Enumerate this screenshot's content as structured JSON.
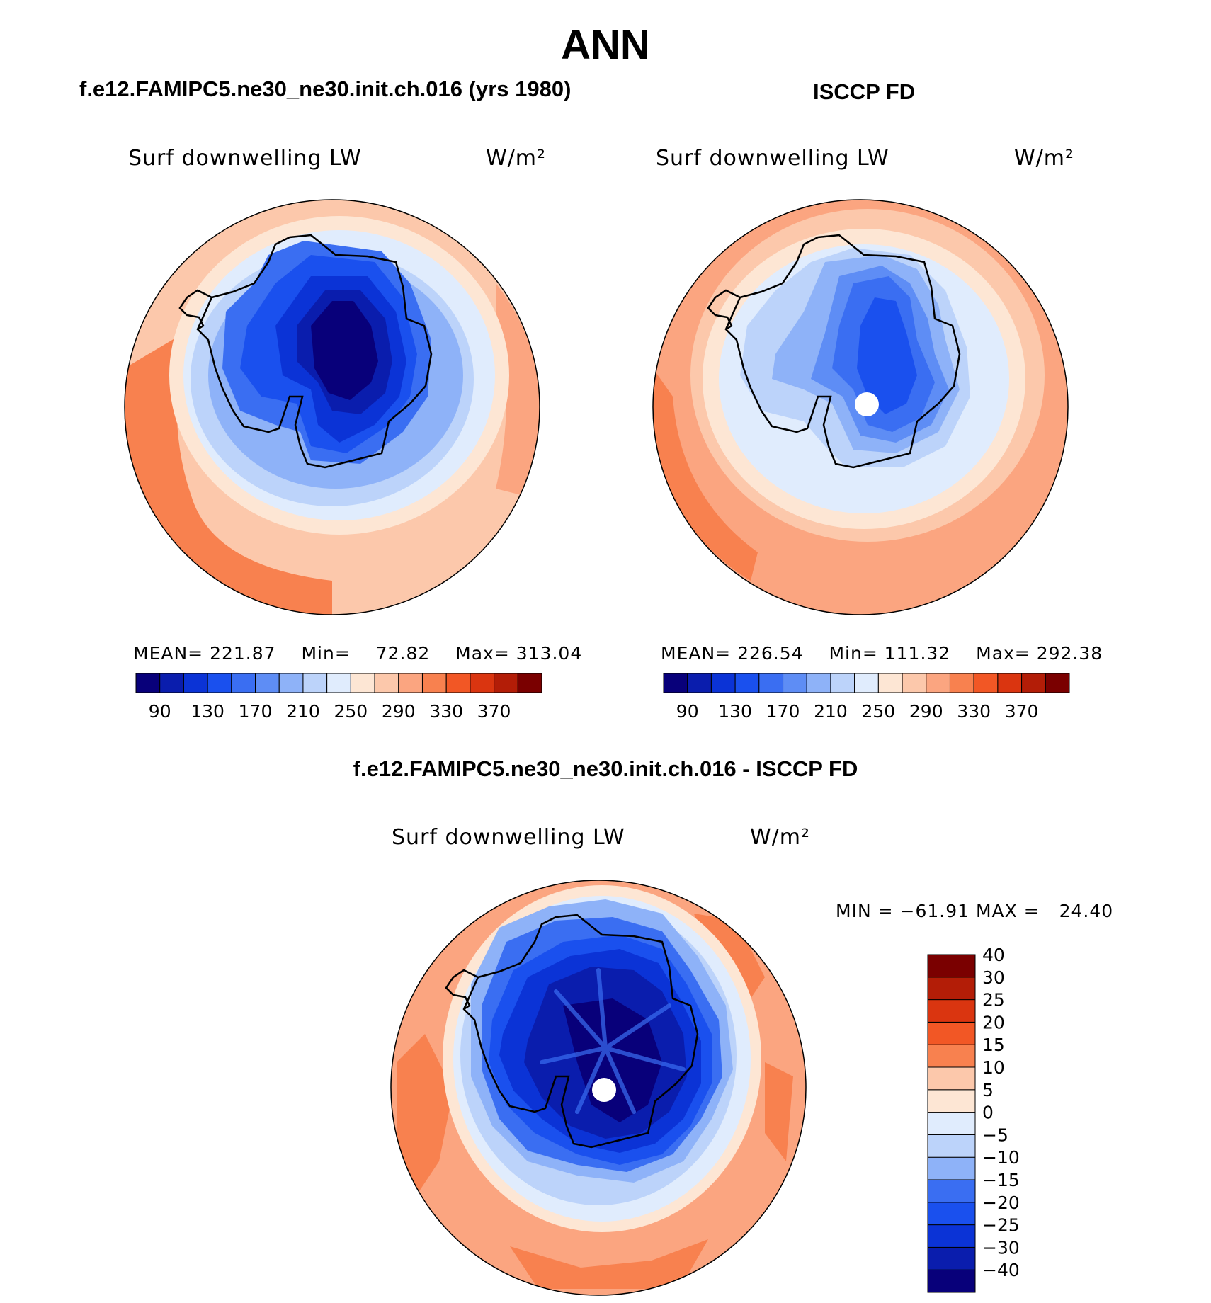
{
  "title": "ANN",
  "panels": [
    {
      "subtitle": "f.e12.FAMIPC5.ne30_ne30.init.ch.016 (yrs 1980)",
      "variable_label": "Surf downwelling LW",
      "units_label": "W/m²",
      "stats": {
        "mean_label": "MEAN=",
        "mean": "221.87",
        "min_label": "Min=",
        "min": "72.82",
        "max_label": "Max=",
        "max": "313.04"
      },
      "missing_pole": false
    },
    {
      "subtitle": "ISCCP FD",
      "variable_label": "Surf downwelling LW",
      "units_label": "W/m²",
      "stats": {
        "mean_label": "MEAN=",
        "mean": "226.54",
        "min_label": "Min=",
        "min": "111.32",
        "max_label": "Max=",
        "max": "292.38"
      },
      "missing_pole": true
    },
    {
      "subtitle": "f.e12.FAMIPC5.ne30_ne30.init.ch.016 - ISCCP FD",
      "variable_label": "Surf downwelling LW",
      "units_label": "W/m²",
      "stats": {
        "min_label": "MIN =",
        "min": "−61.91",
        "max_label": "MAX =",
        "max": "24.40"
      },
      "missing_pole": true
    }
  ],
  "colorbar_abs": {
    "colors": [
      "#08007a",
      "#0a1dad",
      "#0b33d6",
      "#1a50ee",
      "#3a6ef2",
      "#5e8df5",
      "#8eb2f8",
      "#bcd3fa",
      "#e0ecfd",
      "#fde6d4",
      "#fcc8ab",
      "#fba580",
      "#f8814f",
      "#f25725",
      "#da3510",
      "#b31d07",
      "#7a0000"
    ],
    "tick_labels": [
      "90",
      "130",
      "170",
      "210",
      "250",
      "290",
      "330",
      "370"
    ]
  },
  "colorbar_diff": {
    "colors": [
      "#08007a",
      "#0a1dad",
      "#0b33d6",
      "#1a50ee",
      "#3a6ef2",
      "#8eb2f8",
      "#bcd3fa",
      "#e0ecfd",
      "#fde6d4",
      "#fcc8ab",
      "#f8814f",
      "#f25725",
      "#da3510",
      "#b31d07",
      "#7a0000"
    ],
    "tick_labels": [
      "−40",
      "−30",
      "−25",
      "−20",
      "−15",
      "−10",
      "−5",
      "0",
      "5",
      "10",
      "15",
      "20",
      "25",
      "30",
      "40"
    ]
  },
  "colors": {
    "ocean_warm": "#f8814f",
    "coastline": "#000000",
    "missing": "#ffffff"
  }
}
